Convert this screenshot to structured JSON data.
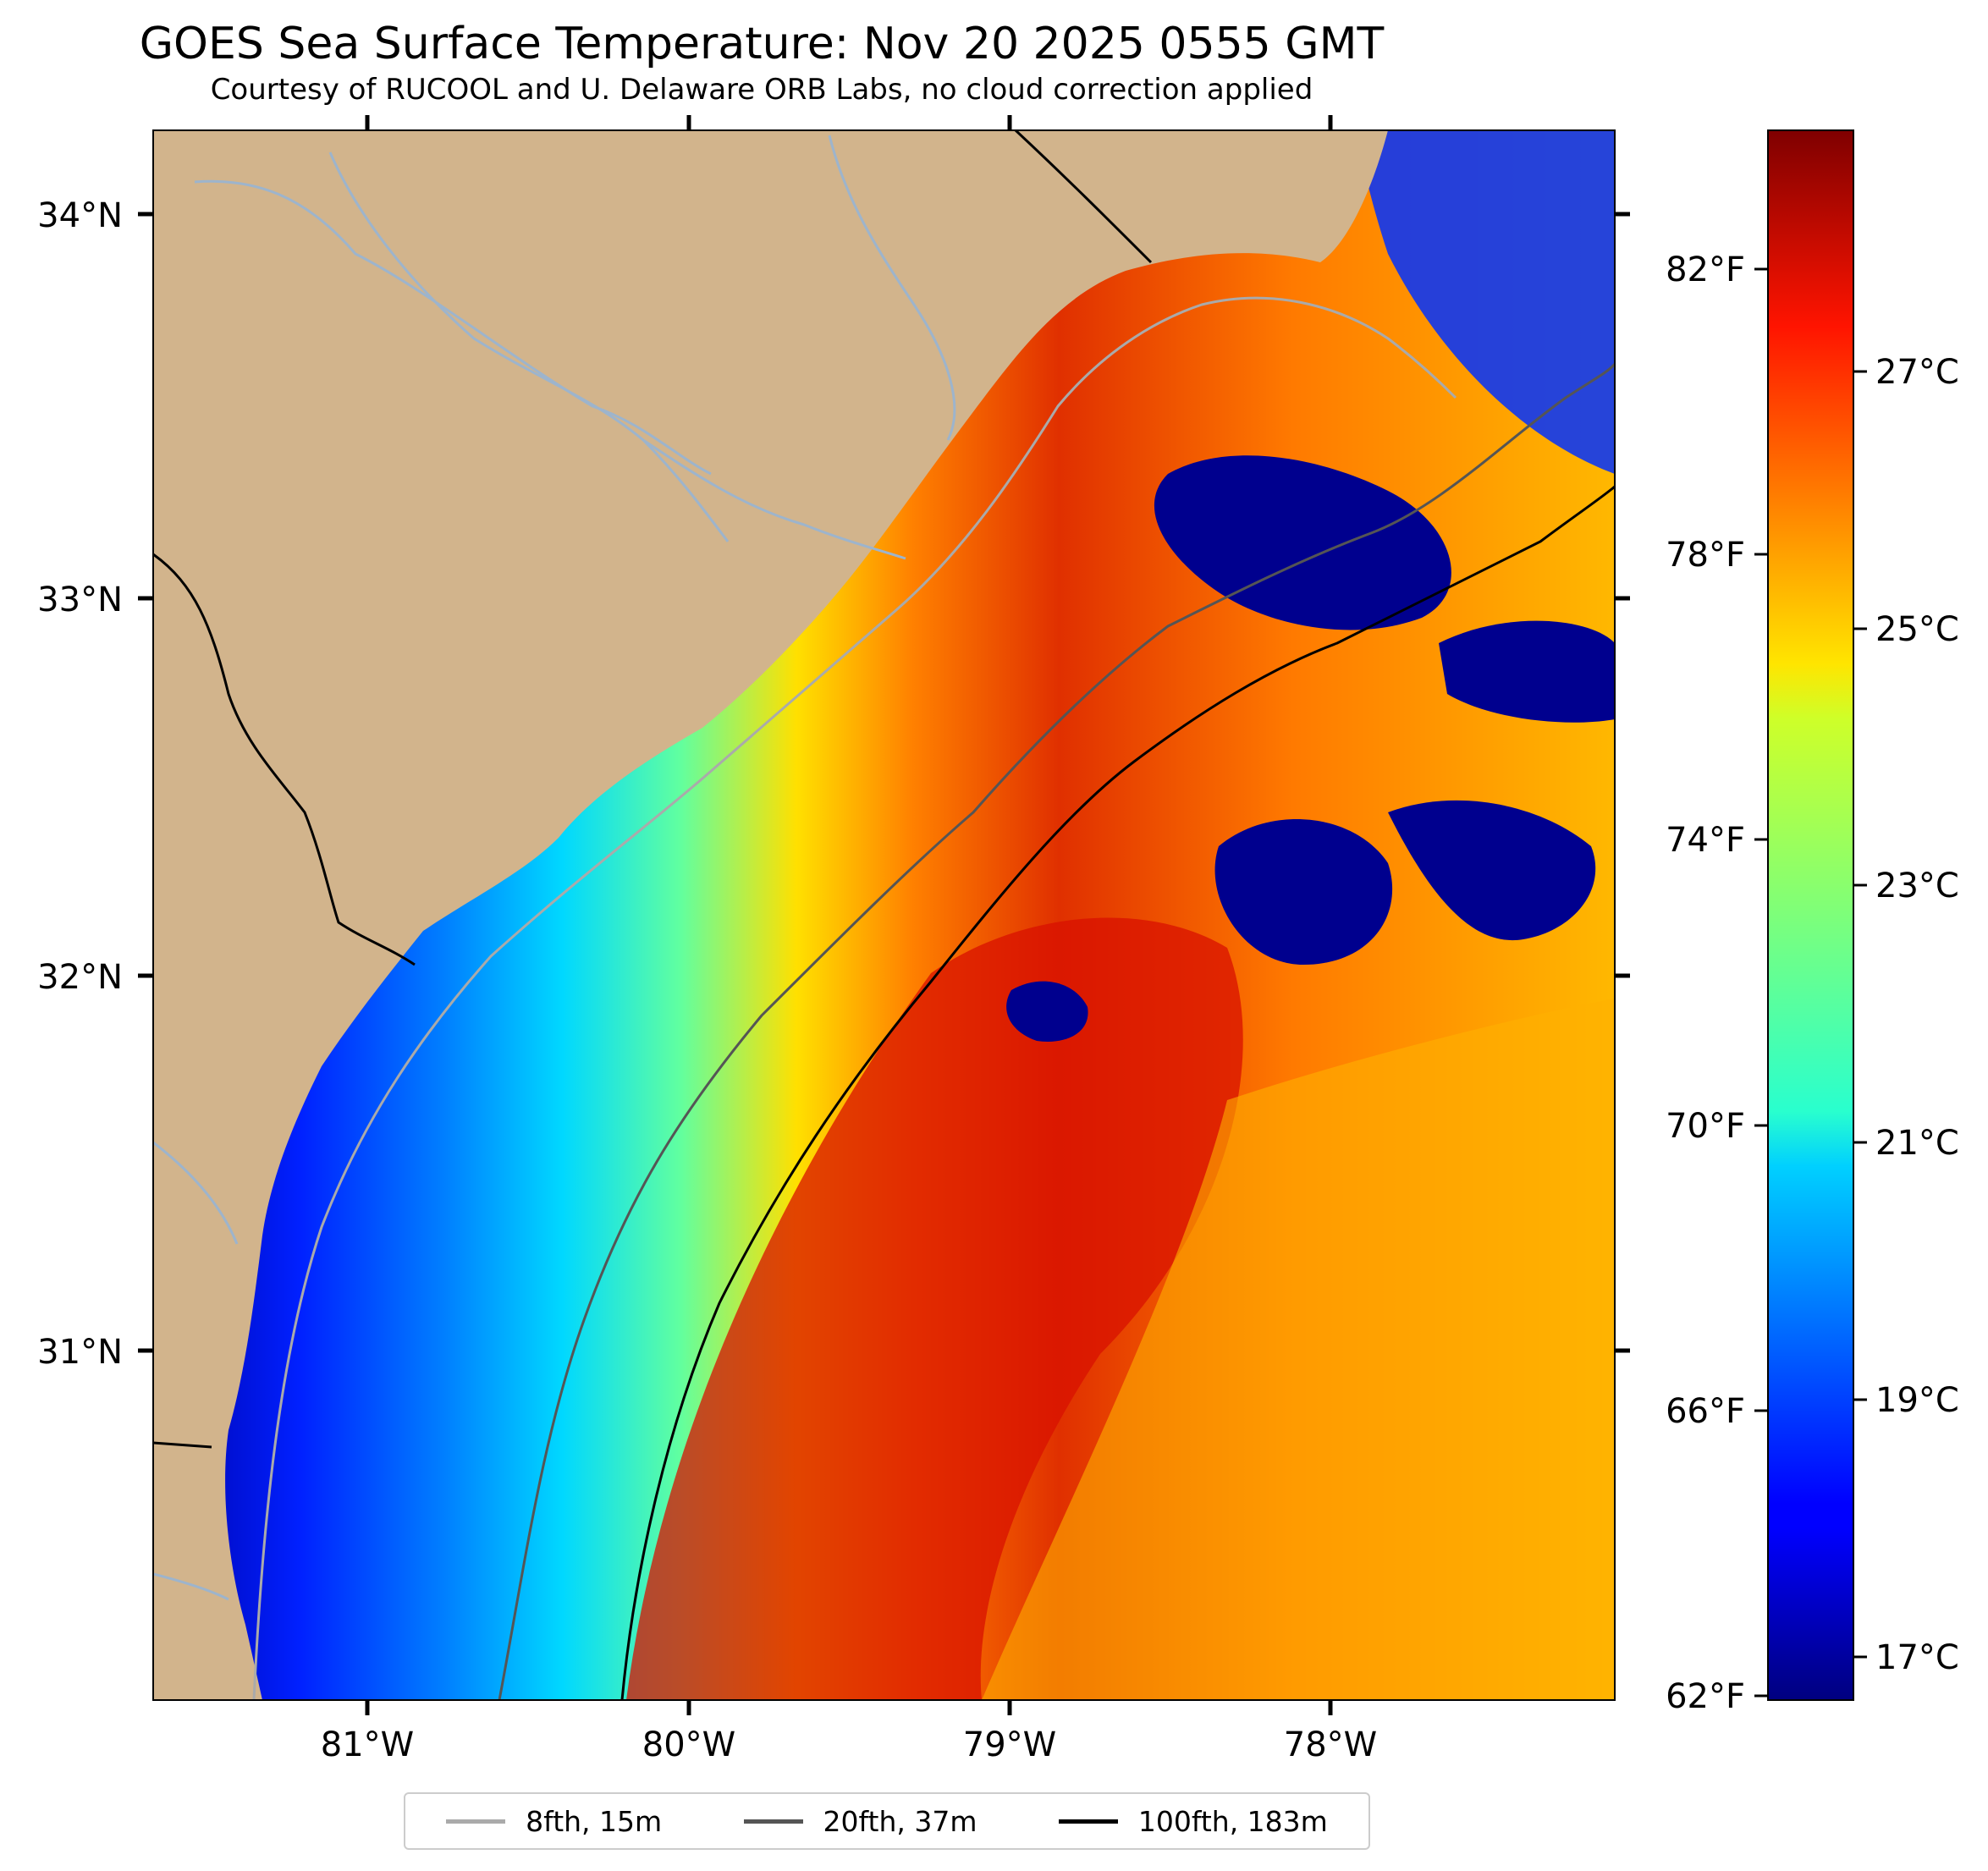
{
  "title": "GOES Sea Surface Temperature: Nov 20 2025 0555 GMT",
  "subtitle": "Courtesy of RUCOOL and U. Delaware ORB Labs, no cloud correction applied",
  "map": {
    "lon_range": [
      -81.67,
      -77.13
    ],
    "lat_range": [
      30.07,
      34.22
    ],
    "lon_ticks": [
      "81°W",
      "80°W",
      "79°W",
      "78°W"
    ],
    "lat_ticks": [
      "34°N",
      "33°N",
      "32°N",
      "31°N"
    ],
    "land_color": "#d2b48c",
    "river_color": "#9db4cc"
  },
  "colorbar": {
    "fahrenheit_ticks": [
      "82°F",
      "78°F",
      "74°F",
      "70°F",
      "66°F",
      "62°F"
    ],
    "celsius_ticks": [
      "27°C",
      "25°C",
      "23°C",
      "21°C",
      "19°C",
      "17°C"
    ],
    "colormap": "jet",
    "range_celsius": [
      16.7,
      28.9
    ]
  },
  "legend": {
    "items": [
      {
        "label": "8fth, 15m",
        "color": "#aaaaaa"
      },
      {
        "label": "20fth, 37m",
        "color": "#555555"
      },
      {
        "label": "100fth, 183m",
        "color": "#000000"
      }
    ]
  }
}
